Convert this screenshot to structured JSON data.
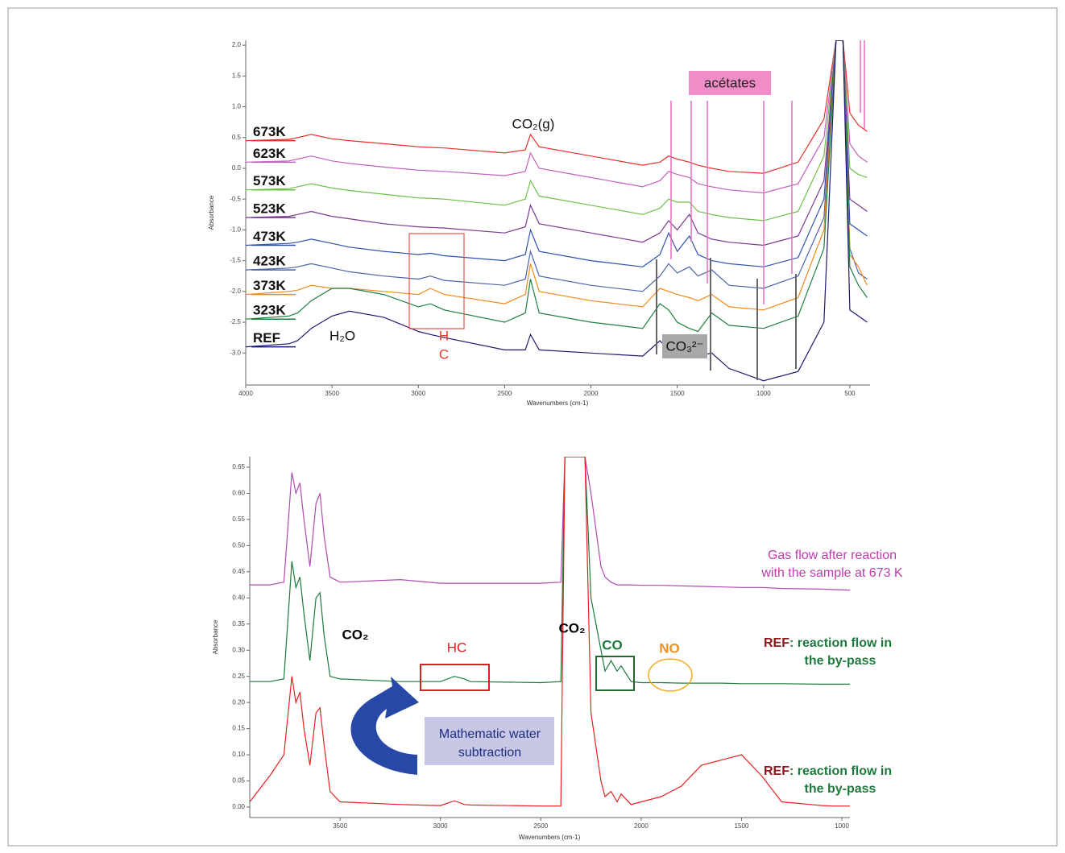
{
  "chart_data": [
    {
      "type": "line",
      "ylabel": "Absorbance",
      "xlabel": "Wavenumbers (cm-1)",
      "xlim": [
        4000,
        383
      ],
      "ylim": [
        -3.52,
        2.08
      ],
      "xticks": [
        4000,
        3500,
        3000,
        2500,
        2000,
        1500,
        1000,
        500
      ],
      "yticks": [
        {
          "value": 2,
          "label": "2.0"
        },
        1.5,
        {
          "value": 1,
          "label": "1.0"
        },
        0.5,
        {
          "value": 0,
          "label": "0.0"
        },
        -0.5,
        {
          "value": -1,
          "label": "-1.0"
        },
        -1.5,
        {
          "value": -2,
          "label": "-2.0"
        },
        -2.5,
        {
          "value": -3,
          "label": "-3.0"
        }
      ],
      "x": [
        4000,
        3750,
        3700,
        3620,
        3500,
        3400,
        3200,
        3000,
        2930,
        2850,
        2500,
        2380,
        2350,
        2300,
        2000,
        1700,
        1600,
        1550,
        1500,
        1430,
        1380,
        1300,
        1200,
        1000,
        800,
        650,
        580,
        540,
        500,
        450,
        400
      ],
      "series": [
        {
          "name": "673K",
          "color": "#e8302a",
          "values": [
            0.45,
            0.47,
            0.5,
            0.55,
            0.48,
            0.45,
            0.4,
            0.35,
            0.34,
            0.33,
            0.25,
            0.3,
            0.55,
            0.35,
            0.2,
            0.05,
            0.1,
            0.2,
            0.15,
            0.1,
            0.05,
            0.0,
            -0.05,
            -0.08,
            0.1,
            0.8,
            2.08,
            2.08,
            0.9,
            0.7,
            0.6
          ]
        },
        {
          "name": "623K",
          "color": "#c060c0",
          "values": [
            0.1,
            0.12,
            0.15,
            0.2,
            0.12,
            0.08,
            0.02,
            -0.03,
            -0.04,
            -0.05,
            -0.12,
            -0.05,
            0.25,
            0.0,
            -0.15,
            -0.3,
            -0.2,
            -0.05,
            -0.1,
            -0.15,
            -0.25,
            -0.3,
            -0.35,
            -0.4,
            -0.25,
            0.5,
            2.08,
            2.08,
            0.4,
            0.2,
            0.1
          ]
        },
        {
          "name": "573K",
          "color": "#6cc04a",
          "values": [
            -0.35,
            -0.33,
            -0.3,
            -0.25,
            -0.32,
            -0.36,
            -0.42,
            -0.48,
            -0.49,
            -0.5,
            -0.6,
            -0.5,
            -0.2,
            -0.45,
            -0.6,
            -0.75,
            -0.65,
            -0.5,
            -0.55,
            -0.55,
            -0.7,
            -0.75,
            -0.8,
            -0.85,
            -0.7,
            0.2,
            2.08,
            2.08,
            0.0,
            -0.1,
            -0.15
          ]
        },
        {
          "name": "523K",
          "color": "#7a3a90",
          "values": [
            -0.8,
            -0.78,
            -0.75,
            -0.7,
            -0.78,
            -0.82,
            -0.9,
            -0.95,
            -0.96,
            -0.97,
            -1.05,
            -0.95,
            -0.6,
            -0.9,
            -1.05,
            -1.2,
            -1.05,
            -0.85,
            -1.0,
            -0.75,
            -1.05,
            -1.15,
            -1.2,
            -1.25,
            -1.1,
            -0.2,
            2.08,
            2.08,
            -0.5,
            -0.6,
            -0.7
          ]
        },
        {
          "name": "473K",
          "color": "#3050b0",
          "values": [
            -1.25,
            -1.22,
            -1.2,
            -1.15,
            -1.22,
            -1.28,
            -1.35,
            -1.4,
            -1.38,
            -1.42,
            -1.5,
            -1.4,
            -1.0,
            -1.35,
            -1.5,
            -1.6,
            -1.4,
            -1.05,
            -1.35,
            -1.1,
            -1.4,
            -1.5,
            -1.55,
            -1.6,
            -1.45,
            -0.5,
            2.08,
            2.08,
            -0.9,
            -1.0,
            -1.1
          ]
        },
        {
          "name": "423K",
          "color": "#4a64a8",
          "values": [
            -1.65,
            -1.62,
            -1.6,
            -1.55,
            -1.62,
            -1.68,
            -1.75,
            -1.8,
            -1.75,
            -1.82,
            -1.9,
            -1.8,
            -1.35,
            -1.75,
            -1.9,
            -2.0,
            -1.75,
            -1.55,
            -1.7,
            -1.6,
            -1.75,
            -1.65,
            -1.9,
            -1.95,
            -1.75,
            -0.8,
            2.08,
            2.08,
            -1.3,
            -1.7,
            -1.8
          ]
        },
        {
          "name": "373K",
          "color": "#f08a1c",
          "values": [
            -2.05,
            -2.0,
            -1.98,
            -1.9,
            -1.95,
            -1.95,
            -2.0,
            -2.05,
            -1.95,
            -2.05,
            -2.2,
            -2.05,
            -1.55,
            -2.0,
            -2.15,
            -2.25,
            -1.95,
            -2.0,
            -2.05,
            -2.1,
            -2.15,
            -2.05,
            -2.25,
            -2.3,
            -2.1,
            -1.0,
            2.08,
            2.08,
            -1.4,
            -1.6,
            -1.9
          ]
        },
        {
          "name": "323K",
          "color": "#1e8040",
          "values": [
            -2.45,
            -2.4,
            -2.35,
            -2.15,
            -1.95,
            -1.95,
            -2.05,
            -2.25,
            -2.2,
            -2.3,
            -2.5,
            -2.35,
            -1.8,
            -2.35,
            -2.5,
            -2.6,
            -2.2,
            -2.3,
            -2.5,
            -2.6,
            -2.65,
            -2.35,
            -2.55,
            -2.6,
            -2.4,
            -1.3,
            2.08,
            2.08,
            -1.6,
            -1.9,
            -2.1
          ]
        },
        {
          "name": "REF",
          "color": "#1c1c6e",
          "values": [
            -2.9,
            -2.85,
            -2.8,
            -2.6,
            -2.4,
            -2.32,
            -2.42,
            -2.65,
            -2.7,
            -2.75,
            -2.95,
            -2.95,
            -2.7,
            -2.95,
            -3.0,
            -3.05,
            -2.8,
            -2.95,
            -3.0,
            -3.05,
            -3.05,
            -3.0,
            -3.25,
            -3.45,
            -3.3,
            -2.5,
            2.08,
            2.08,
            -2.3,
            -2.4,
            -2.5
          ]
        }
      ],
      "annotations": [
        "acétates",
        "CO₂(g)",
        "H₂O",
        "H",
        "C",
        "CO₃²⁻"
      ]
    },
    {
      "type": "line",
      "ylabel": "Absorbance",
      "xlabel": "Wavenumbers (cm-1)",
      "xlim": [
        3950,
        960
      ],
      "ylim": [
        -0.02,
        0.67
      ],
      "xticks": [
        3500,
        3000,
        2500,
        2000,
        1500,
        1000
      ],
      "yticks": [
        {
          "value": 0,
          "label": "0.00"
        },
        {
          "value": 0.05,
          "label": "0.05"
        },
        {
          "value": 0.1,
          "label": "0.10"
        },
        {
          "value": 0.15,
          "label": "0.15"
        },
        {
          "value": 0.2,
          "label": "0.20"
        },
        {
          "value": 0.25,
          "label": "0.25"
        },
        {
          "value": 0.3,
          "label": "0.30"
        },
        {
          "value": 0.35,
          "label": "0.35"
        },
        {
          "value": 0.4,
          "label": "0.40"
        },
        {
          "value": 0.45,
          "label": "0.45"
        },
        {
          "value": 0.5,
          "label": "0.50"
        },
        {
          "value": 0.55,
          "label": "0.55"
        },
        {
          "value": 0.6,
          "label": "0.60"
        },
        {
          "value": 0.65,
          "label": "0.65"
        }
      ],
      "x": [
        3950,
        3850,
        3780,
        3740,
        3720,
        3700,
        3680,
        3650,
        3620,
        3600,
        3580,
        3550,
        3500,
        3200,
        3000,
        2930,
        2880,
        2850,
        2500,
        2400,
        2380,
        2360,
        2300,
        2280,
        2250,
        2200,
        2180,
        2150,
        2120,
        2100,
        2050,
        2000,
        1900,
        1800,
        1700,
        1600,
        1500,
        1400,
        1300,
        1100,
        1050,
        960
      ],
      "series": [
        {
          "color": "#b04cb0",
          "values": [
            0.425,
            0.425,
            0.43,
            0.64,
            0.6,
            0.62,
            0.55,
            0.46,
            0.58,
            0.6,
            0.52,
            0.44,
            0.43,
            0.435,
            0.428,
            0.428,
            0.428,
            0.428,
            0.428,
            0.43,
            0.67,
            0.67,
            0.67,
            0.67,
            0.6,
            0.46,
            0.44,
            0.43,
            0.425,
            0.425,
            0.425,
            0.424,
            0.424,
            0.423,
            0.422,
            0.421,
            0.42,
            0.42,
            0.418,
            0.417,
            0.416,
            0.415
          ]
        },
        {
          "color": "#1e7a3c",
          "values": [
            0.24,
            0.24,
            0.245,
            0.47,
            0.42,
            0.44,
            0.37,
            0.28,
            0.4,
            0.41,
            0.33,
            0.25,
            0.245,
            0.24,
            0.24,
            0.25,
            0.245,
            0.24,
            0.238,
            0.24,
            0.67,
            0.67,
            0.67,
            0.67,
            0.4,
            0.3,
            0.26,
            0.28,
            0.26,
            0.27,
            0.24,
            0.238,
            0.238,
            0.237,
            0.237,
            0.237,
            0.236,
            0.236,
            0.236,
            0.235,
            0.235,
            0.235
          ]
        },
        {
          "color": "#e82020",
          "values": [
            0.01,
            0.06,
            0.1,
            0.25,
            0.2,
            0.22,
            0.15,
            0.08,
            0.18,
            0.19,
            0.12,
            0.03,
            0.01,
            0.005,
            0.003,
            0.012,
            0.005,
            0.004,
            0.002,
            0.002,
            0.67,
            0.67,
            0.67,
            0.67,
            0.18,
            0.05,
            0.02,
            0.03,
            0.01,
            0.025,
            0.005,
            0.01,
            0.02,
            0.04,
            0.08,
            0.09,
            0.1,
            0.06,
            0.01,
            0.003,
            0.002,
            0.002
          ]
        }
      ],
      "annotations": [
        "CO₂",
        "CO₂",
        "HC",
        "CO",
        "NO",
        "Mathematic water",
        "subtraction",
        "Gas flow after reaction",
        "with the sample at 673 K",
        "REF",
        ": reaction flow in",
        "the by-pass",
        "REF",
        ": reaction flow in",
        "the by-pass"
      ]
    }
  ]
}
